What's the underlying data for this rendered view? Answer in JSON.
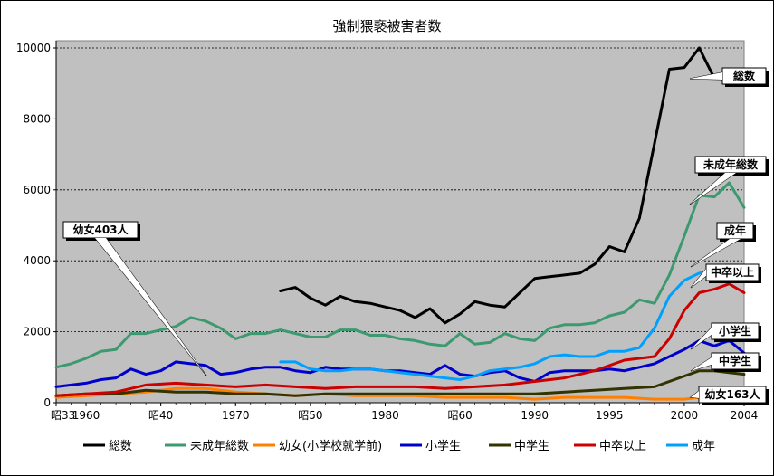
{
  "chart_data": {
    "type": "line",
    "title": "強制猥褻被害者数",
    "ylim": [
      0,
      10000
    ],
    "y_ticks": [
      "0",
      "2000",
      "4000",
      "6000",
      "8000",
      "10000"
    ],
    "x_range": [
      1958,
      2004
    ],
    "x_ticks": [
      {
        "year": 1958,
        "label": "昭33"
      },
      {
        "year": 1960,
        "label": "1960"
      },
      {
        "year": 1965,
        "label": "昭40"
      },
      {
        "year": 1970,
        "label": "1970"
      },
      {
        "year": 1975,
        "label": "昭50"
      },
      {
        "year": 1980,
        "label": "1980"
      },
      {
        "year": 1985,
        "label": "昭60"
      },
      {
        "year": 1990,
        "label": "1990"
      },
      {
        "year": 1995,
        "label": "1995"
      },
      {
        "year": 2000,
        "label": "2000"
      },
      {
        "year": 2004,
        "label": "2004"
      }
    ],
    "grid": true,
    "legend_position": "bottom",
    "series": [
      {
        "name": "総数",
        "color": "#000000",
        "x": [
          1973,
          1974,
          1975,
          1976,
          1977,
          1978,
          1979,
          1980,
          1981,
          1982,
          1983,
          1984,
          1985,
          1986,
          1987,
          1988,
          1989,
          1990,
          1991,
          1992,
          1993,
          1994,
          1995,
          1996,
          1997,
          1998,
          1999,
          2000,
          2001,
          2002,
          2003,
          2004
        ],
        "y": [
          3150,
          3250,
          2950,
          2750,
          3000,
          2850,
          2800,
          2700,
          2600,
          2400,
          2650,
          2250,
          2500,
          2850,
          2750,
          2700,
          3100,
          3500,
          3550,
          3600,
          3650,
          3900,
          4400,
          4250,
          5200,
          7300,
          9400,
          9450,
          10000,
          9150,
          9150,
          9150
        ]
      },
      {
        "name": "未成年総数",
        "color": "#3d9970",
        "x": [
          1958,
          1959,
          1960,
          1961,
          1962,
          1963,
          1964,
          1965,
          1966,
          1967,
          1968,
          1969,
          1970,
          1971,
          1972,
          1973,
          1974,
          1975,
          1976,
          1977,
          1978,
          1979,
          1980,
          1981,
          1982,
          1983,
          1984,
          1985,
          1986,
          1987,
          1988,
          1989,
          1990,
          1991,
          1992,
          1993,
          1994,
          1995,
          1996,
          1997,
          1998,
          1999,
          2000,
          2001,
          2002,
          2003,
          2004
        ],
        "y": [
          1000,
          1100,
          1250,
          1450,
          1500,
          1950,
          1950,
          2050,
          2150,
          2400,
          2300,
          2100,
          1800,
          1950,
          1950,
          2050,
          1950,
          1850,
          1850,
          2050,
          2050,
          1900,
          1900,
          1800,
          1750,
          1650,
          1600,
          1950,
          1650,
          1700,
          1950,
          1800,
          1750,
          2100,
          2200,
          2200,
          2250,
          2450,
          2550,
          2900,
          2800,
          3600,
          4700,
          5850,
          5800,
          6200,
          5500
        ]
      },
      {
        "name": "幼女(小学校就学前)",
        "color": "#ff8000",
        "x": [
          1958,
          1960,
          1962,
          1964,
          1966,
          1968,
          1970,
          1972,
          1974,
          1976,
          1978,
          1980,
          1982,
          1984,
          1986,
          1988,
          1990,
          1992,
          1994,
          1996,
          1998,
          2000,
          2002,
          2004
        ],
        "y": [
          150,
          200,
          250,
          300,
          400,
          403,
          300,
          250,
          200,
          250,
          200,
          200,
          200,
          150,
          150,
          150,
          100,
          150,
          150,
          150,
          100,
          100,
          200,
          163
        ]
      },
      {
        "name": "小学生",
        "color": "#0000cc",
        "x": [
          1958,
          1959,
          1960,
          1961,
          1962,
          1963,
          1964,
          1965,
          1966,
          1967,
          1968,
          1969,
          1970,
          1971,
          1972,
          1973,
          1974,
          1975,
          1976,
          1977,
          1978,
          1979,
          1980,
          1981,
          1982,
          1983,
          1984,
          1985,
          1986,
          1987,
          1988,
          1989,
          1990,
          1991,
          1992,
          1993,
          1994,
          1995,
          1996,
          1997,
          1998,
          1999,
          2000,
          2001,
          2002,
          2003,
          2004
        ],
        "y": [
          450,
          500,
          550,
          650,
          700,
          950,
          800,
          900,
          1150,
          1100,
          1050,
          800,
          850,
          950,
          1000,
          1000,
          900,
          850,
          1000,
          950,
          950,
          950,
          900,
          900,
          850,
          800,
          1050,
          800,
          750,
          850,
          900,
          700,
          600,
          850,
          900,
          900,
          900,
          950,
          900,
          1000,
          1100,
          1300,
          1500,
          1750,
          1600,
          1750,
          1400
        ]
      },
      {
        "name": "中学生",
        "color": "#333300",
        "x": [
          1958,
          1960,
          1962,
          1964,
          1966,
          1968,
          1970,
          1972,
          1974,
          1976,
          1978,
          1980,
          1982,
          1984,
          1986,
          1988,
          1990,
          1992,
          1994,
          1996,
          1998,
          2000,
          2001,
          2002,
          2003,
          2004
        ],
        "y": [
          200,
          250,
          250,
          350,
          300,
          300,
          250,
          250,
          200,
          250,
          250,
          250,
          250,
          250,
          250,
          250,
          250,
          300,
          350,
          400,
          450,
          750,
          900,
          900,
          850,
          800
        ]
      },
      {
        "name": "中卒以上",
        "color": "#cc0000",
        "x": [
          1958,
          1960,
          1962,
          1964,
          1966,
          1968,
          1970,
          1972,
          1974,
          1976,
          1978,
          1980,
          1982,
          1984,
          1986,
          1988,
          1990,
          1992,
          1994,
          1996,
          1998,
          1999,
          2000,
          2001,
          2002,
          2003,
          2004
        ],
        "y": [
          200,
          250,
          300,
          500,
          550,
          500,
          450,
          500,
          450,
          400,
          450,
          450,
          450,
          400,
          450,
          500,
          600,
          700,
          900,
          1200,
          1300,
          1800,
          2600,
          3100,
          3200,
          3350,
          3100
        ]
      },
      {
        "name": "成年",
        "color": "#00a0ff",
        "x": [
          1973,
          1974,
          1975,
          1976,
          1977,
          1978,
          1979,
          1980,
          1981,
          1982,
          1983,
          1984,
          1985,
          1986,
          1987,
          1988,
          1989,
          1990,
          1991,
          1992,
          1993,
          1994,
          1995,
          1996,
          1997,
          1998,
          1999,
          2000,
          2001,
          2002,
          2003,
          2004
        ],
        "y": [
          1150,
          1150,
          950,
          900,
          900,
          950,
          950,
          900,
          850,
          800,
          750,
          700,
          650,
          750,
          900,
          950,
          1000,
          1100,
          1300,
          1350,
          1300,
          1300,
          1450,
          1450,
          1550,
          2100,
          3000,
          3450,
          3650,
          3750,
          3750,
          3700
        ]
      }
    ],
    "callouts": [
      {
        "text": "総数",
        "series": "総数"
      },
      {
        "text": "未成年総数",
        "series": "未成年総数"
      },
      {
        "text": "成年",
        "series": "成年"
      },
      {
        "text": "中卒以上",
        "series": "中卒以上"
      },
      {
        "text": "小学生",
        "series": "小学生"
      },
      {
        "text": "中学生",
        "series": "中学生"
      },
      {
        "text": "幼女163人",
        "series": "幼女(小学校就学前)"
      },
      {
        "text": "幼女403人",
        "series": "幼女(小学校就学前)"
      }
    ],
    "legend": [
      {
        "label": "総数",
        "color": "#000000"
      },
      {
        "label": "未成年総数",
        "color": "#3d9970"
      },
      {
        "label": "幼女(小学校就学前)",
        "color": "#ff8000"
      },
      {
        "label": "小学生",
        "color": "#0000cc"
      },
      {
        "label": "中学生",
        "color": "#333300"
      },
      {
        "label": "中卒以上",
        "color": "#cc0000"
      },
      {
        "label": "成年",
        "color": "#00a0ff"
      }
    ]
  }
}
